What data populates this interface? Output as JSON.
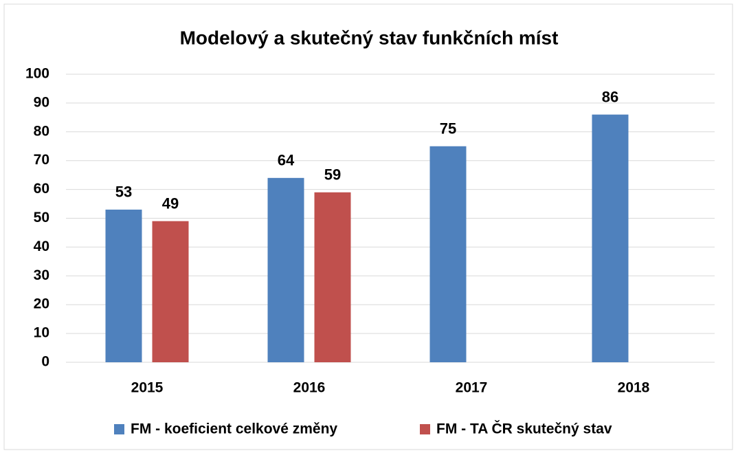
{
  "chart_data": {
    "type": "bar",
    "title": "Modelový a skutečný stav funkčních míst",
    "categories": [
      "2015",
      "2016",
      "2017",
      "2018"
    ],
    "series": [
      {
        "name": "FM - koeficient celkové změny",
        "color": "#4f81bd",
        "values": [
          53,
          64,
          75,
          86
        ]
      },
      {
        "name": "FM - TA ČR skutečný stav",
        "color": "#c0504d",
        "values": [
          49,
          59,
          null,
          null
        ]
      }
    ],
    "ylim": [
      0,
      100
    ],
    "yticks": [
      0,
      10,
      20,
      30,
      40,
      50,
      60,
      70,
      80,
      90,
      100
    ],
    "grid": true,
    "legend": "bottom"
  }
}
